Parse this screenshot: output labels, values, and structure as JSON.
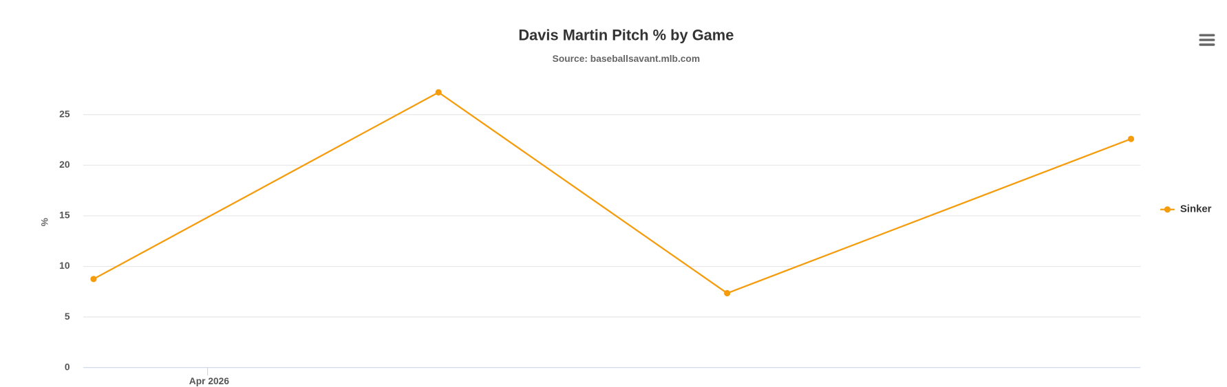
{
  "chart_data": {
    "type": "line",
    "title": "Davis Martin Pitch % by Game",
    "subtitle": "Source: baseballsavant.mlb.com",
    "y_label": "%",
    "x_tick_label": "Apr 2026",
    "categories": [
      null,
      null,
      null,
      null
    ],
    "series": [
      {
        "name": "Sinker",
        "color": "#f59c0c",
        "values": [
          8.75,
          27.2,
          7.35,
          22.6
        ]
      }
    ],
    "ylim": [
      0,
      28
    ],
    "yticks": [
      0,
      5,
      10,
      15,
      20,
      25
    ],
    "grid": true,
    "legend": "right"
  }
}
